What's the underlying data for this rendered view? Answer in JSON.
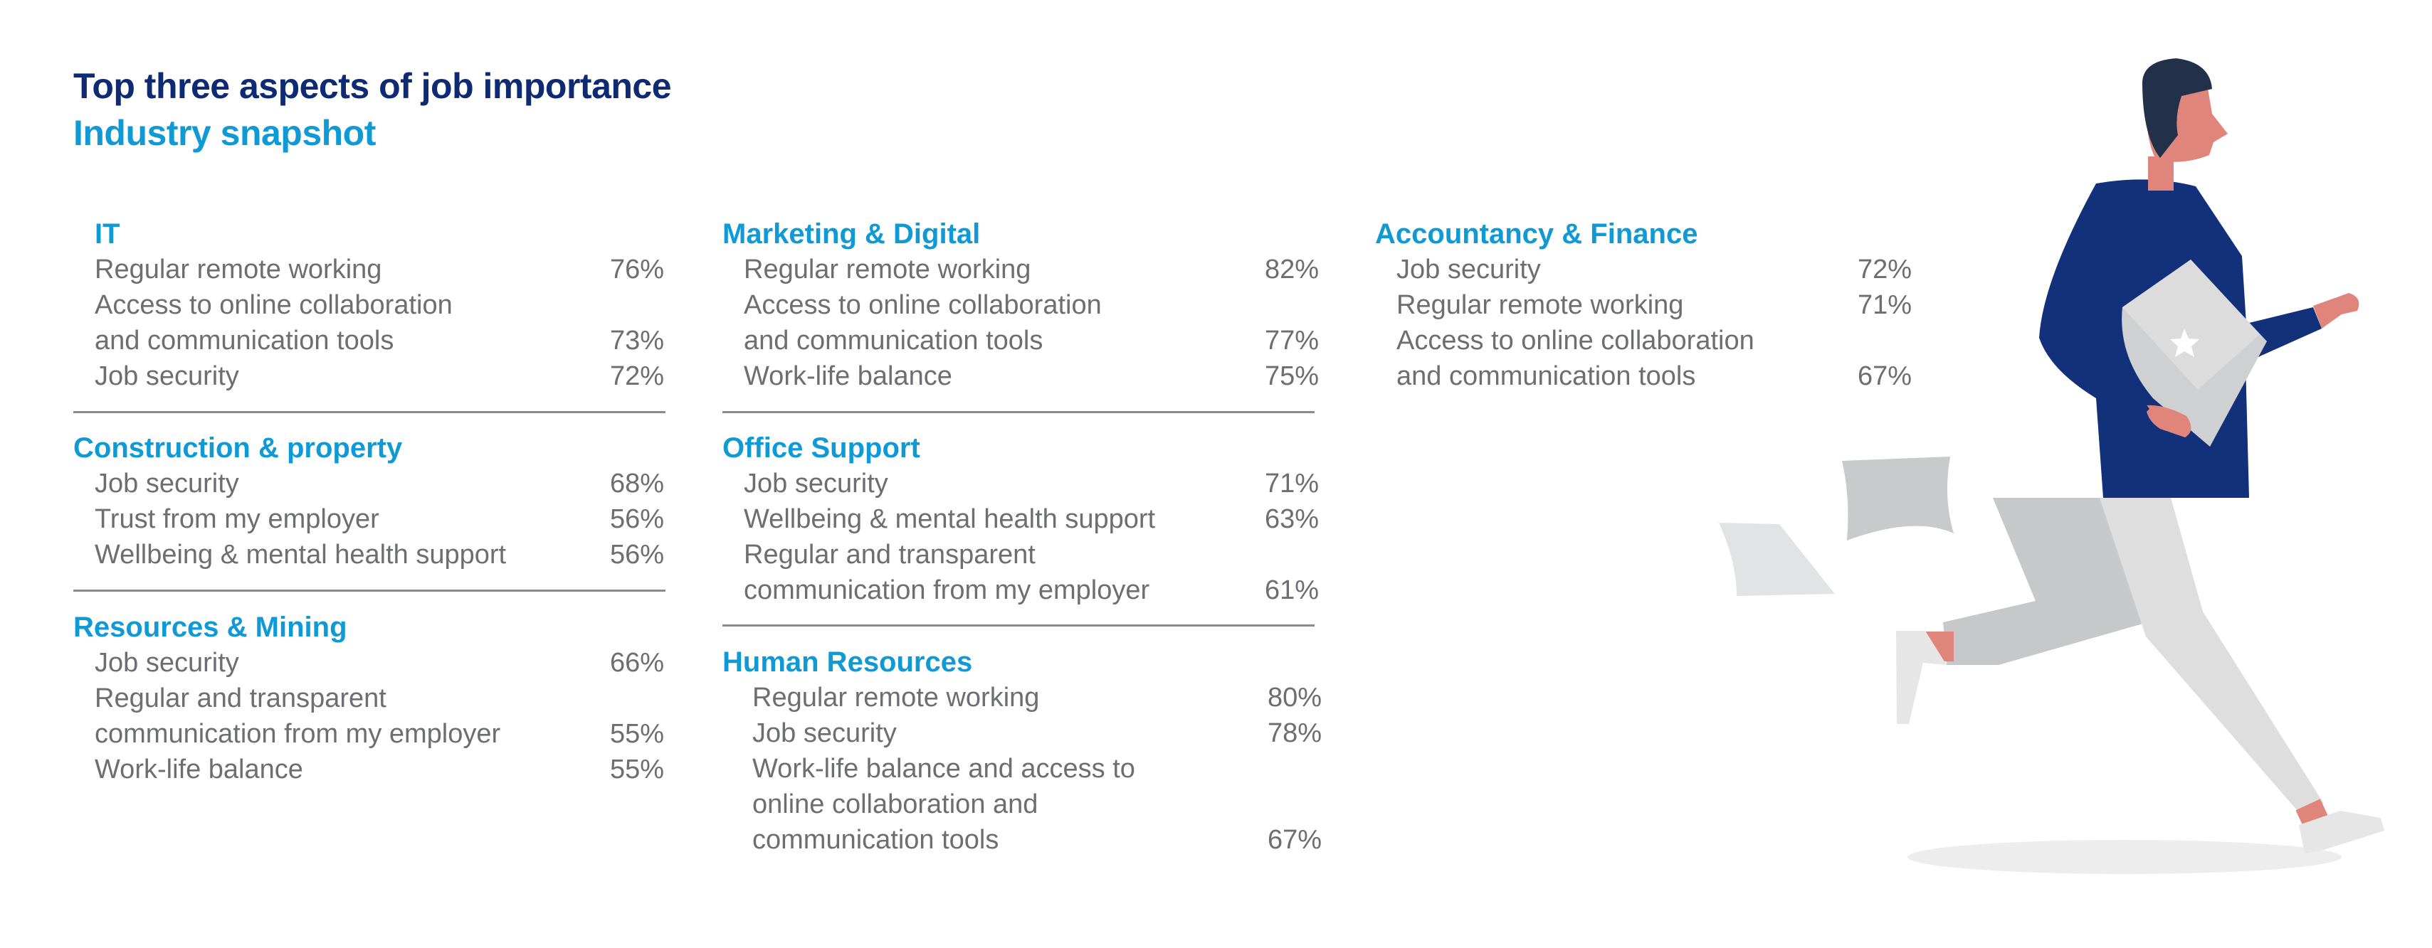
{
  "header": {
    "title": "Top three aspects of job importance",
    "subtitle": "Industry snapshot"
  },
  "sections": [
    {
      "title": "IT",
      "items": [
        {
          "label": "Regular remote working",
          "value": "76%"
        },
        {
          "label": "Access to online collaboration\nand communication tools",
          "value": "73%"
        },
        {
          "label": "Job security",
          "value": "72%"
        }
      ]
    },
    {
      "title": "Construction & property",
      "items": [
        {
          "label": "Job security",
          "value": "68%"
        },
        {
          "label": "Trust from my employer",
          "value": "56%"
        },
        {
          "label": "Wellbeing & mental health support",
          "value": "56%"
        }
      ]
    },
    {
      "title": "Resources & Mining",
      "items": [
        {
          "label": "Job security",
          "value": "66%"
        },
        {
          "label": "Regular and transparent\ncommunication from my employer",
          "value": "55%"
        },
        {
          "label": "Work-life balance",
          "value": "55%"
        }
      ]
    },
    {
      "title": "Marketing & Digital",
      "items": [
        {
          "label": "Regular remote working",
          "value": "82%"
        },
        {
          "label": "Access to online collaboration\nand communication tools",
          "value": "77%"
        },
        {
          "label": "Work-life balance",
          "value": "75%"
        }
      ]
    },
    {
      "title": "Office Support",
      "items": [
        {
          "label": "Job security",
          "value": "71%"
        },
        {
          "label": "Wellbeing & mental health support",
          "value": "63%"
        },
        {
          "label": "Regular and transparent\ncommunication from my employer",
          "value": "61%"
        }
      ]
    },
    {
      "title": "Human Resources",
      "items": [
        {
          "label": "Regular remote working",
          "value": "80%"
        },
        {
          "label": "Job security",
          "value": "78%"
        },
        {
          "label": "Work-life balance and access to\nonline collaboration and\ncommunication tools",
          "value": "67%"
        }
      ]
    },
    {
      "title": "Accountancy & Finance",
      "items": [
        {
          "label": "Job security",
          "value": "72%"
        },
        {
          "label": "Regular remote working",
          "value": "71%"
        },
        {
          "label": "Access to online collaboration\nand communication tools",
          "value": "67%"
        }
      ]
    }
  ],
  "colors": {
    "title": "#0d2a72",
    "section_heading": "#0f9ad6",
    "body_text": "#6d6e71",
    "divider": "#8a8b8d",
    "figure_jacket": "#13317b",
    "figure_skin": "#e0857c",
    "figure_hair": "#22304a",
    "figure_trousers": "#d9d9d9",
    "figure_papers": "#c9cacc"
  },
  "illustration": "running-man-with-laptop-icon"
}
